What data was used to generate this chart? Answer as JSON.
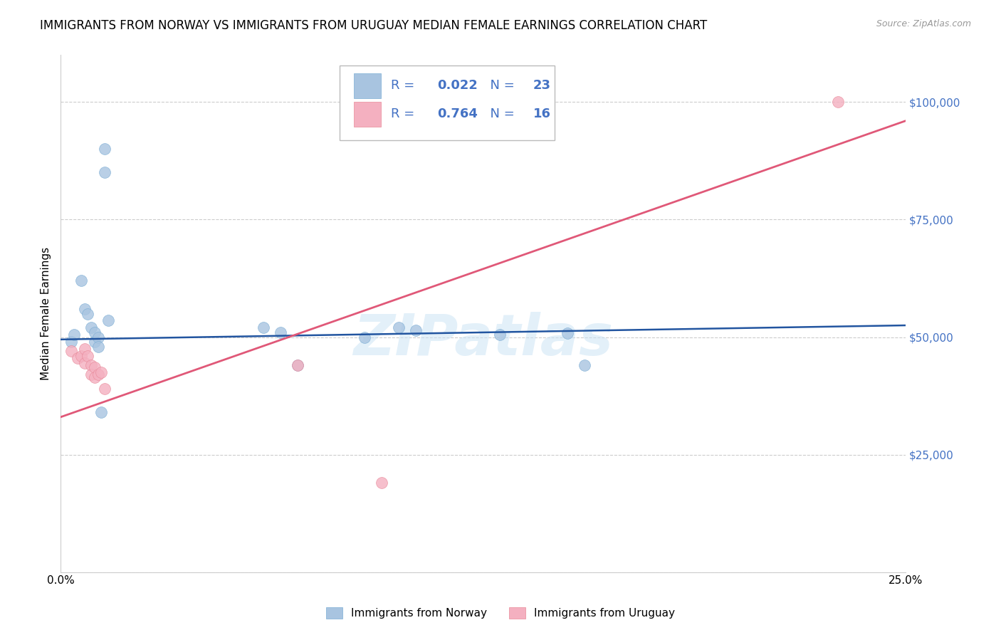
{
  "title": "IMMIGRANTS FROM NORWAY VS IMMIGRANTS FROM URUGUAY MEDIAN FEMALE EARNINGS CORRELATION CHART",
  "source": "Source: ZipAtlas.com",
  "ylabel": "Median Female Earnings",
  "xlim": [
    0,
    0.25
  ],
  "ylim": [
    0,
    110000
  ],
  "yticks": [
    0,
    25000,
    50000,
    75000,
    100000
  ],
  "xticks": [
    0.0,
    0.05,
    0.1,
    0.15,
    0.2,
    0.25
  ],
  "xtick_labels": [
    "0.0%",
    "",
    "",
    "",
    "",
    "25.0%"
  ],
  "ytick_labels": [
    "",
    "$25,000",
    "$50,000",
    "$75,000",
    "$100,000"
  ],
  "norway_color": "#a8c4e0",
  "norway_edge_color": "#7badd4",
  "norway_line_color": "#2255a0",
  "uruguay_color": "#f4b0c0",
  "uruguay_edge_color": "#e88898",
  "uruguay_line_color": "#e05878",
  "right_label_color": "#4472c4",
  "legend_value_color": "#4472c4",
  "norway_scatter_x": [
    0.003,
    0.004,
    0.006,
    0.007,
    0.008,
    0.009,
    0.01,
    0.01,
    0.011,
    0.011,
    0.012,
    0.013,
    0.013,
    0.014,
    0.06,
    0.065,
    0.07,
    0.09,
    0.1,
    0.105,
    0.13,
    0.15,
    0.155
  ],
  "norway_scatter_y": [
    49000,
    50500,
    62000,
    56000,
    55000,
    52000,
    49000,
    51000,
    50000,
    48000,
    34000,
    85000,
    90000,
    53500,
    52000,
    51000,
    44000,
    50000,
    52000,
    51500,
    50500,
    50800,
    44000
  ],
  "uruguay_scatter_x": [
    0.003,
    0.005,
    0.006,
    0.007,
    0.007,
    0.008,
    0.009,
    0.009,
    0.01,
    0.01,
    0.011,
    0.012,
    0.013,
    0.07,
    0.095,
    0.23
  ],
  "uruguay_scatter_y": [
    47000,
    45500,
    46000,
    47500,
    44500,
    46000,
    44000,
    42000,
    43500,
    41500,
    42000,
    42500,
    39000,
    44000,
    19000,
    100000
  ],
  "norway_R": "0.022",
  "norway_N": "23",
  "uruguay_R": "0.764",
  "uruguay_N": "16",
  "norway_trend_x": [
    0.0,
    0.25
  ],
  "norway_trend_y": [
    49500,
    52500
  ],
  "uruguay_trend_x": [
    0.0,
    0.25
  ],
  "uruguay_trend_y": [
    33000,
    96000
  ],
  "watermark": "ZIPatlas",
  "background_color": "#ffffff",
  "grid_color": "#cccccc",
  "title_fontsize": 12,
  "label_fontsize": 11,
  "tick_fontsize": 11,
  "legend_fontsize": 13
}
